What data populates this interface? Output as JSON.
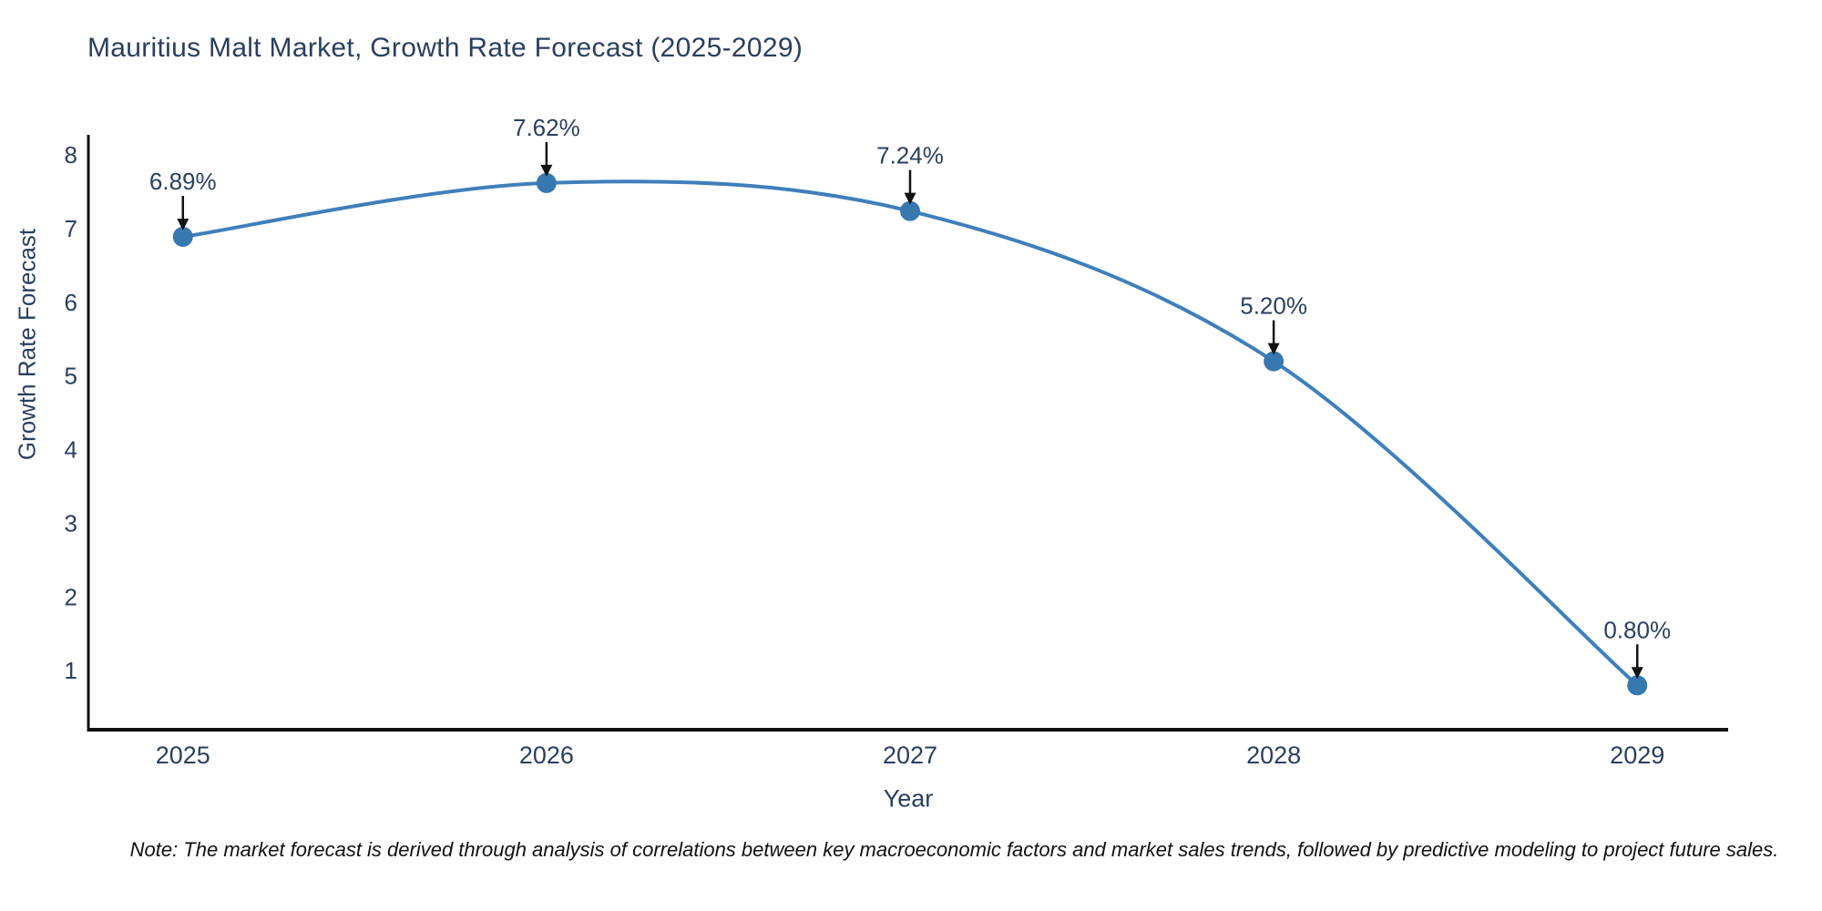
{
  "page": {
    "note": "Note: The market forecast is derived through analysis of correlations between key macroeconomic factors and market sales trends, followed by predictive modeling to project future sales."
  },
  "chart_data": {
    "type": "line",
    "title": "Mauritius Malt Market, Growth Rate Forecast (2025-2029)",
    "xlabel": "Year",
    "ylabel": "Growth Rate Forecast",
    "x": [
      2025,
      2026,
      2027,
      2028,
      2029
    ],
    "series": [
      {
        "name": "Growth Rate Forecast",
        "values": [
          6.89,
          7.62,
          7.24,
          5.2,
          0.8
        ]
      }
    ],
    "point_labels": [
      "6.89%",
      "7.62%",
      "7.24%",
      "5.20%",
      "0.80%"
    ],
    "yticks": [
      1,
      2,
      3,
      4,
      5,
      6,
      7,
      8
    ],
    "xlim": [
      2024.74,
      2029.25
    ],
    "ylim": [
      0.21,
      8.25
    ],
    "grid": false,
    "legend": "none",
    "line_shape": "spline",
    "colors": {
      "line": "#3f7fba",
      "marker": "#3878b0",
      "axis": "#111111",
      "text": "#2a3f5f",
      "arrow": "#111111",
      "background": "#ffffff"
    }
  }
}
